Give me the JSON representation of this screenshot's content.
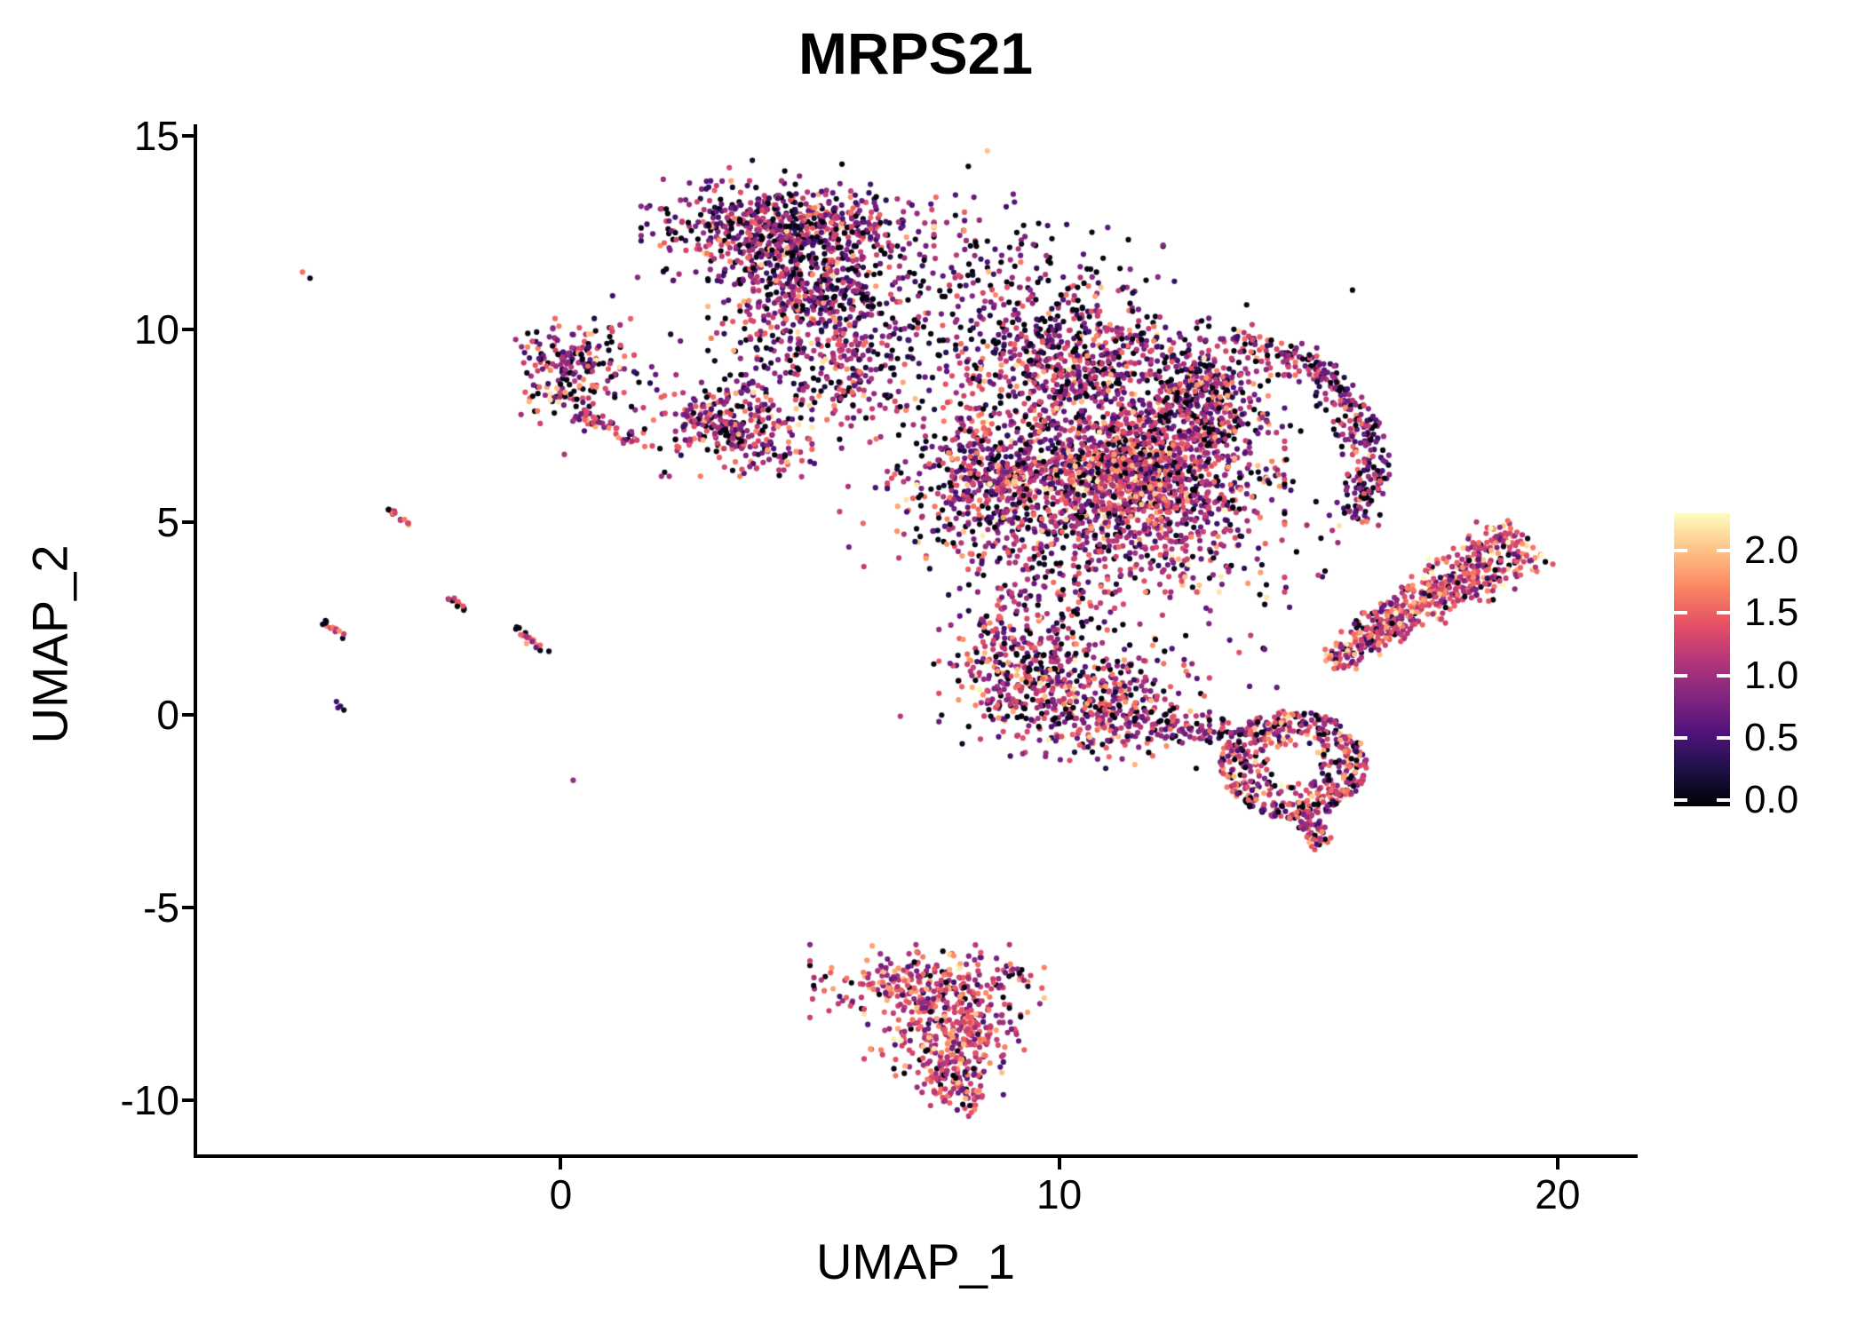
{
  "title": "MRPS21",
  "axes": {
    "x": {
      "label": "UMAP_1",
      "domain": [
        -7.33,
        21.57
      ],
      "ticks": [
        0,
        10,
        20
      ],
      "tick_labels": [
        "0",
        "10",
        "20"
      ]
    },
    "y": {
      "label": "UMAP_2",
      "domain": [
        -11.45,
        15.31
      ],
      "ticks": [
        15,
        10,
        5,
        0,
        -5,
        -10
      ],
      "tick_labels": [
        "15",
        "10",
        "5",
        "0",
        "-5",
        "-10"
      ]
    }
  },
  "colorbar": {
    "ticks": [
      2.0,
      1.5,
      1.0,
      0.5,
      0.0
    ],
    "tick_labels": [
      "2.0",
      "1.5",
      "1.0",
      "0.5",
      "0.0"
    ],
    "value_max": 2.3,
    "colormap_name": "magma",
    "stops": [
      "#000004",
      "#1D1147",
      "#51127C",
      "#822681",
      "#B63679",
      "#E65164",
      "#FB8861",
      "#FEC287",
      "#FCFDBF"
    ]
  },
  "colors": {
    "background": "#FFFFFF",
    "axis": "#000000",
    "text": "#000000"
  },
  "chart_data": {
    "type": "scatter",
    "title": "MRPS21",
    "xlabel": "UMAP_1",
    "ylabel": "UMAP_2",
    "xlim": [
      -7.33,
      21.57
    ],
    "ylim": [
      -11.45,
      15.31
    ],
    "color_scale": {
      "min": 0.0,
      "max": 2.3,
      "colormap": "magma"
    },
    "point_radius_px": 3.1,
    "seed": 1337,
    "clusters": [
      {
        "name": "isolated-pair-topleft",
        "kind": "points",
        "pts": [
          [
            -5.18,
            11.48,
            1.6
          ],
          [
            -5.03,
            11.32,
            0.05
          ]
        ]
      },
      {
        "name": "streak-a",
        "kind": "line",
        "x0": -3.45,
        "y0": 5.36,
        "x1": -2.97,
        "y1": 4.84,
        "w": 0.07,
        "n": 16,
        "edge_dark": true,
        "v": {
          "mean": 1.55,
          "sd": 0.3,
          "p0": 0.08
        }
      },
      {
        "name": "streak-b",
        "kind": "line",
        "x0": -4.76,
        "y0": 2.42,
        "x1": -4.32,
        "y1": 2.0,
        "w": 0.07,
        "n": 13,
        "edge_dark": true,
        "v": {
          "mean": 1.45,
          "sd": 0.32,
          "p0": 0.08
        }
      },
      {
        "name": "streak-c",
        "kind": "line",
        "x0": -2.32,
        "y0": 3.1,
        "x1": -1.9,
        "y1": 2.72,
        "w": 0.07,
        "n": 12,
        "edge_dark": true,
        "v": {
          "mean": 1.5,
          "sd": 0.3,
          "p0": 0.1
        }
      },
      {
        "name": "streak-d",
        "kind": "line",
        "x0": -0.95,
        "y0": 2.25,
        "x1": -0.28,
        "y1": 1.62,
        "w": 0.09,
        "n": 18,
        "edge_dark": true,
        "v": {
          "mean": 1.35,
          "sd": 0.35,
          "p0": 0.1
        }
      },
      {
        "name": "dark-spot",
        "kind": "points",
        "pts": [
          [
            -4.5,
            0.34,
            0.5
          ],
          [
            -4.42,
            0.22,
            0.42
          ],
          [
            -4.35,
            0.12,
            0.08
          ],
          [
            -4.47,
            0.18,
            0.55
          ]
        ]
      },
      {
        "name": "lone-dot",
        "kind": "points",
        "pts": [
          [
            0.25,
            -1.7,
            0.95
          ]
        ]
      },
      {
        "name": "left-blob-core",
        "kind": "gauss",
        "cx": 0.25,
        "cy": 9.3,
        "sx": 0.52,
        "sy": 0.42,
        "n": 125,
        "v": {
          "mean": 1.05,
          "sd": 0.5,
          "p0": 0.13
        }
      },
      {
        "name": "left-blob-lower",
        "kind": "gauss",
        "cx": 0.05,
        "cy": 8.3,
        "sx": 0.36,
        "sy": 0.4,
        "n": 55,
        "v": {
          "mean": 1.0,
          "sd": 0.5,
          "p0": 0.15
        }
      },
      {
        "name": "left-blob-tail",
        "kind": "line",
        "x0": 0.3,
        "y0": 7.78,
        "x1": 1.55,
        "y1": 7.15,
        "w": 0.16,
        "n": 45,
        "v": {
          "mean": 1.15,
          "sd": 0.45,
          "p0": 0.12
        }
      },
      {
        "name": "left-blob-halo",
        "kind": "gauss",
        "cx": 0.75,
        "cy": 8.5,
        "sx": 0.8,
        "sy": 0.8,
        "n": 40,
        "v": {
          "mean": 0.8,
          "sd": 0.5,
          "p0": 0.3
        }
      },
      {
        "name": "mid-blob",
        "kind": "gauss",
        "cx": 3.35,
        "cy": 7.5,
        "sx": 0.72,
        "sy": 0.56,
        "n": 300,
        "v": {
          "mean": 1.1,
          "sd": 0.5,
          "p0": 0.12
        }
      },
      {
        "name": "mid-blob-east",
        "kind": "gauss",
        "cx": 4.45,
        "cy": 6.8,
        "sx": 0.4,
        "sy": 0.3,
        "n": 25,
        "v": {
          "mean": 0.95,
          "sd": 0.5,
          "p0": 0.2
        }
      },
      {
        "name": "top-band",
        "kind": "gauss",
        "cx": 4.55,
        "cy": 12.55,
        "sx": 1.25,
        "sy": 0.55,
        "n": 650,
        "v": {
          "mean": 0.95,
          "sd": 0.5,
          "p0": 0.15
        }
      },
      {
        "name": "top-mid",
        "kind": "gauss",
        "cx": 4.95,
        "cy": 10.9,
        "sx": 0.85,
        "sy": 0.62,
        "n": 330,
        "v": {
          "mean": 0.95,
          "sd": 0.5,
          "p0": 0.15
        }
      },
      {
        "name": "top-neck",
        "kind": "gauss",
        "cx": 5.85,
        "cy": 8.9,
        "sx": 0.5,
        "sy": 0.78,
        "n": 170,
        "v": {
          "mean": 1.0,
          "sd": 0.5,
          "p0": 0.13
        }
      },
      {
        "name": "neck-west-fill",
        "kind": "gauss",
        "cx": 4.5,
        "cy": 9.3,
        "sx": 0.6,
        "sy": 0.6,
        "n": 80,
        "v": {
          "mean": 0.95,
          "sd": 0.5,
          "p0": 0.16
        }
      },
      {
        "name": "top-halo",
        "kind": "gauss",
        "cx": 4.8,
        "cy": 11.8,
        "sx": 1.6,
        "sy": 1.2,
        "n": 170,
        "v": {
          "mean": 0.85,
          "sd": 0.5,
          "p0": 0.2
        }
      },
      {
        "name": "top-east-sparse",
        "kind": "gauss",
        "cx": 7.6,
        "cy": 10.6,
        "sx": 0.9,
        "sy": 1.2,
        "n": 120,
        "v": {
          "mean": 0.9,
          "sd": 0.5,
          "p0": 0.22
        }
      },
      {
        "name": "bridge-sparse",
        "kind": "gauss",
        "cx": 9.5,
        "cy": 11.5,
        "sx": 1.1,
        "sy": 0.85,
        "n": 90,
        "v": {
          "mean": 0.8,
          "sd": 0.5,
          "p0": 0.28
        }
      },
      {
        "name": "mass-top",
        "kind": "gauss",
        "cx": 10.3,
        "cy": 9.25,
        "sx": 1.15,
        "sy": 0.78,
        "n": 560,
        "v": {
          "mean": 1.0,
          "sd": 0.5,
          "p0": 0.16
        }
      },
      {
        "name": "mass-west",
        "kind": "gauss",
        "cx": 8.55,
        "cy": 6.2,
        "sx": 0.85,
        "sy": 1.1,
        "n": 480,
        "v": {
          "mean": 1.05,
          "sd": 0.5,
          "p0": 0.15
        }
      },
      {
        "name": "mass-core",
        "kind": "gauss",
        "cx": 11.35,
        "cy": 6.0,
        "sx": 1.35,
        "sy": 1.2,
        "n": 1350,
        "v": {
          "mean": 1.15,
          "sd": 0.48,
          "p0": 0.13
        }
      },
      {
        "name": "mass-core-bright",
        "kind": "gauss",
        "cx": 11.55,
        "cy": 6.45,
        "sx": 0.6,
        "sy": 0.6,
        "n": 220,
        "v": {
          "mean": 1.5,
          "sd": 0.35,
          "p0": 0.05
        }
      },
      {
        "name": "mass-northeast",
        "kind": "gauss",
        "cx": 12.9,
        "cy": 8.1,
        "sx": 0.55,
        "sy": 0.7,
        "n": 380,
        "v": {
          "mean": 1.05,
          "sd": 0.5,
          "p0": 0.15
        }
      },
      {
        "name": "mass-salt",
        "kind": "gauss",
        "cx": 11.0,
        "cy": 5.6,
        "sx": 2.3,
        "sy": 2.4,
        "n": 470,
        "v": {
          "mean": 0.9,
          "sd": 0.55,
          "p0": 0.25
        }
      },
      {
        "name": "right-edge-arc",
        "kind": "arc",
        "cx": 12.95,
        "cy": 6.5,
        "r": 3.25,
        "a0": 80,
        "a1": -26,
        "w": 0.38,
        "n": 330,
        "v": {
          "mean": 1.0,
          "sd": 0.5,
          "p0": 0.16
        }
      },
      {
        "name": "mass-south-west",
        "kind": "gauss",
        "cx": 9.35,
        "cy": 1.3,
        "sx": 0.75,
        "sy": 1.05,
        "n": 400,
        "v": {
          "mean": 1.1,
          "sd": 0.5,
          "p0": 0.15
        }
      },
      {
        "name": "mass-south-mid",
        "kind": "gauss",
        "cx": 10.9,
        "cy": 0.3,
        "sx": 0.9,
        "sy": 0.72,
        "n": 330,
        "v": {
          "mean": 1.1,
          "sd": 0.5,
          "p0": 0.14
        }
      },
      {
        "name": "south-bridge",
        "kind": "line",
        "x0": 11.5,
        "y0": -0.2,
        "x1": 13.5,
        "y1": -0.5,
        "w": 0.35,
        "n": 70,
        "v": {
          "mean": 0.95,
          "sd": 0.5,
          "p0": 0.2
        }
      },
      {
        "name": "south-ring",
        "kind": "ring",
        "cx": 14.7,
        "cy": -1.3,
        "r0": 0.45,
        "r1": 1.4,
        "n": 520,
        "v": {
          "mean": 1.2,
          "sd": 0.48,
          "p0": 0.12
        }
      },
      {
        "name": "ring-tail",
        "kind": "line",
        "x0": 14.85,
        "y0": -2.5,
        "x1": 15.3,
        "y1": -3.4,
        "w": 0.28,
        "n": 60,
        "v": {
          "mean": 1.2,
          "sd": 0.45,
          "p0": 0.1
        }
      },
      {
        "name": "east-band",
        "kind": "band",
        "x0": 15.5,
        "y0": 1.4,
        "x1": 19.35,
        "y1": 4.6,
        "w0": 0.32,
        "w1": 0.78,
        "n": 620,
        "v": {
          "mean": 1.3,
          "sd": 0.42,
          "p0": 0.08
        }
      },
      {
        "name": "south-cluster-top",
        "kind": "gauss",
        "cx": 7.35,
        "cy": -7.0,
        "sx": 1.0,
        "sy": 0.44,
        "n": 270,
        "v": {
          "mean": 1.3,
          "sd": 0.42,
          "p0": 0.08
        }
      },
      {
        "name": "south-cluster-mid",
        "kind": "gauss",
        "cx": 7.85,
        "cy": -8.1,
        "sx": 0.75,
        "sy": 0.46,
        "n": 210,
        "v": {
          "mean": 1.3,
          "sd": 0.42,
          "p0": 0.08
        }
      },
      {
        "name": "south-cluster-low",
        "kind": "gauss",
        "cx": 7.8,
        "cy": -9.15,
        "sx": 0.46,
        "sy": 0.42,
        "n": 120,
        "v": {
          "mean": 1.25,
          "sd": 0.45,
          "p0": 0.08
        }
      },
      {
        "name": "south-cluster-tail",
        "kind": "gauss",
        "cx": 8.1,
        "cy": -9.8,
        "sx": 0.26,
        "sy": 0.26,
        "n": 40,
        "v": {
          "mean": 1.3,
          "sd": 0.4,
          "p0": 0.06
        }
      },
      {
        "name": "south-cluster-hook",
        "kind": "line",
        "x0": 8.95,
        "y0": -6.5,
        "x1": 9.4,
        "y1": -7.1,
        "w": 0.12,
        "n": 12,
        "v": {
          "mean": 1.1,
          "sd": 0.4,
          "p0": 0.15
        }
      }
    ]
  }
}
